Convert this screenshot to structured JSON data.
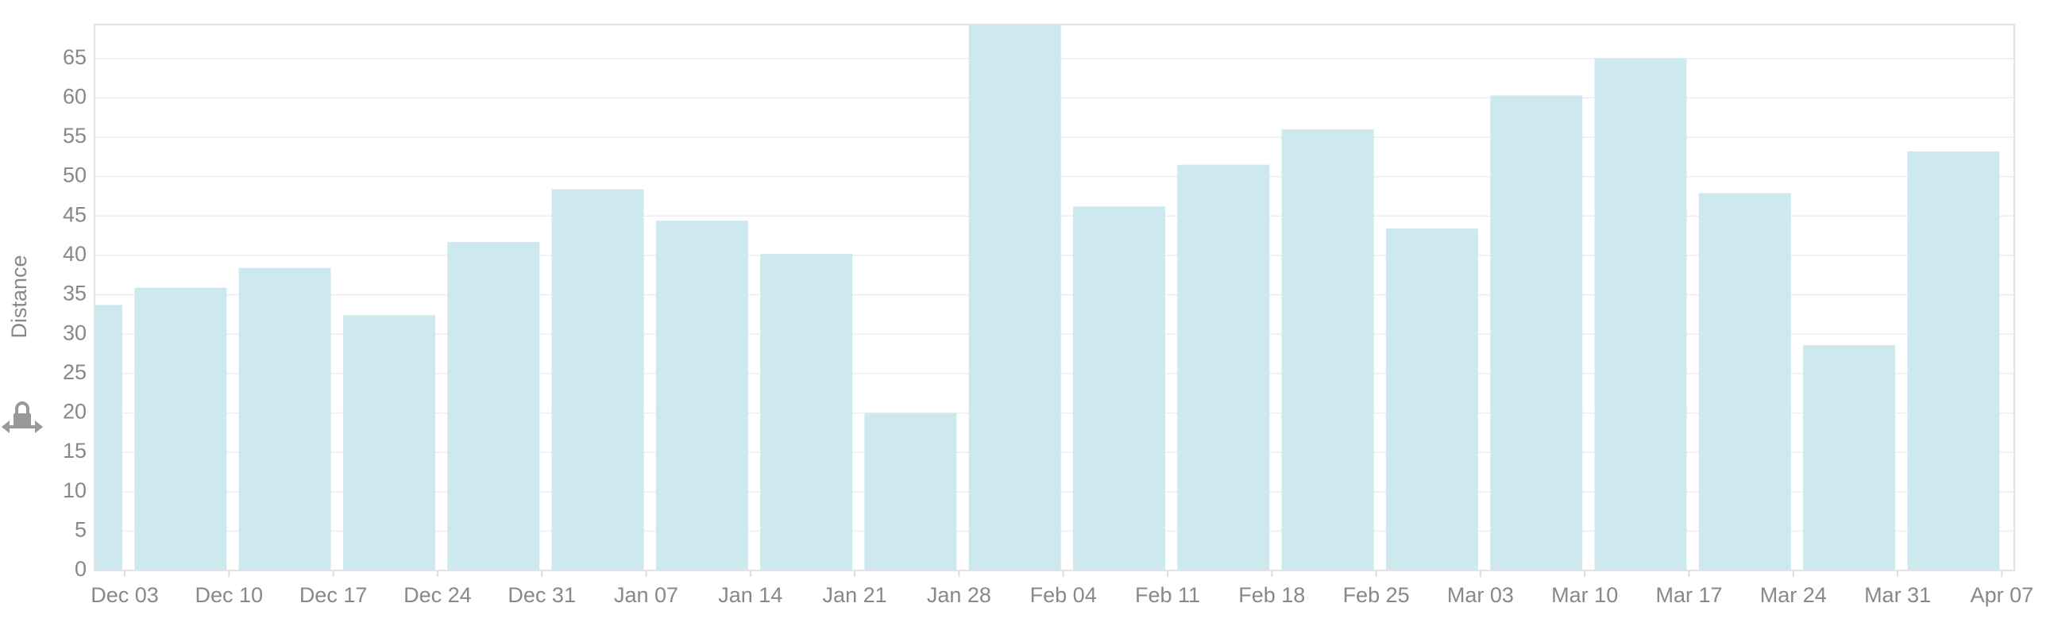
{
  "chart_data": {
    "type": "bar",
    "y_label": "Distance",
    "categories": [
      "Dec 03",
      "Dec 10",
      "Dec 17",
      "Dec 24",
      "Dec 31",
      "Jan 07",
      "Jan 14",
      "Jan 21",
      "Jan 28",
      "Feb 04",
      "Feb 11",
      "Feb 18",
      "Feb 25",
      "Mar 03",
      "Mar 10",
      "Mar 17",
      "Mar 24",
      "Mar 31",
      "Apr 07"
    ],
    "values": [
      33.7,
      35.9,
      38.4,
      32.4,
      41.7,
      48.4,
      44.4,
      40.2,
      20.0,
      69.3,
      46.2,
      51.5,
      56.0,
      43.4,
      60.3,
      65.0,
      47.9,
      28.6,
      53.2
    ],
    "color": "#cde9ef",
    "ylim": [
      0,
      69.3
    ],
    "yticks": [
      0,
      5,
      10,
      15,
      20,
      25,
      30,
      35,
      40,
      45,
      50,
      55,
      60,
      65
    ],
    "grid": true
  }
}
